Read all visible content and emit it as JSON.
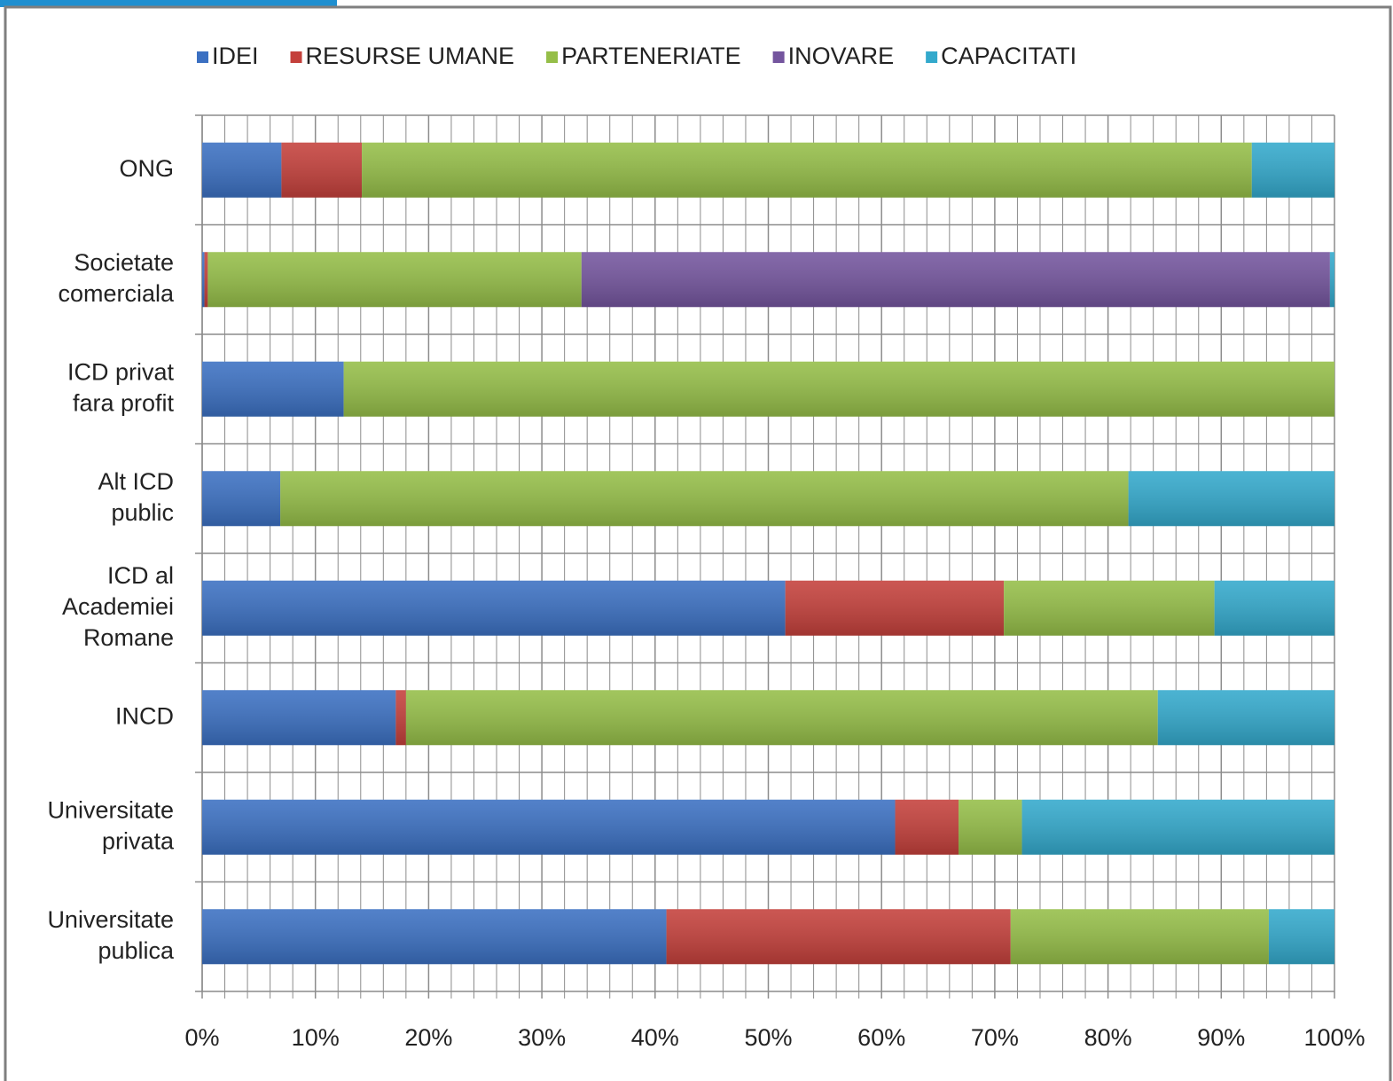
{
  "chart_data": {
    "type": "stacked_barh",
    "categories": [
      [
        "ONG"
      ],
      [
        "Societate",
        "comerciala"
      ],
      [
        "ICD privat",
        "fara profit"
      ],
      [
        "Alt ICD",
        "public"
      ],
      [
        "ICD al",
        "Academiei",
        "Romane"
      ],
      [
        "INCD"
      ],
      [
        "Universitate",
        "privata"
      ],
      [
        "Universitate",
        "publica"
      ]
    ],
    "series": [
      {
        "name": "IDEI",
        "color": "#3b70c2",
        "values": [
          7.0,
          0.2,
          12.5,
          6.9,
          51.5,
          17.1,
          61.2,
          41.0
        ]
      },
      {
        "name": "RESURSE UMANE",
        "color": "#c4403b",
        "values": [
          7.1,
          0.3,
          0,
          0,
          19.3,
          0.9,
          5.6,
          30.4
        ]
      },
      {
        "name": "PARTENERIATE",
        "color": "#95be48",
        "values": [
          78.6,
          33.0,
          87.5,
          74.9,
          18.6,
          66.4,
          5.6,
          22.8
        ]
      },
      {
        "name": "INOVARE",
        "color": "#74559e",
        "values": [
          0,
          66.1,
          0,
          0,
          0,
          0,
          0,
          0
        ]
      },
      {
        "name": "CAPACITATI",
        "color": "#33a9cc",
        "values": [
          7.3,
          0.4,
          0,
          18.2,
          10.6,
          15.6,
          27.6,
          5.8
        ]
      }
    ],
    "xlim": [
      0,
      100
    ],
    "xticks": [
      {
        "value": 0,
        "label": "0%"
      },
      {
        "value": 10,
        "label": "10%"
      },
      {
        "value": 20,
        "label": "20%"
      },
      {
        "value": 30,
        "label": "30%"
      },
      {
        "value": 40,
        "label": "40%"
      },
      {
        "value": 50,
        "label": "50%"
      },
      {
        "value": 60,
        "label": "60%"
      },
      {
        "value": 70,
        "label": "70%"
      },
      {
        "value": 80,
        "label": "80%"
      },
      {
        "value": 90,
        "label": "90%"
      },
      {
        "value": 100,
        "label": "100%"
      }
    ],
    "xminorticks": [
      2,
      4,
      6,
      8,
      12,
      14,
      16,
      18,
      22,
      24,
      26,
      28,
      32,
      34,
      36,
      38,
      42,
      44,
      46,
      48,
      52,
      54,
      56,
      58,
      62,
      64,
      66,
      68,
      72,
      74,
      76,
      78,
      82,
      84,
      86,
      88,
      92,
      94,
      96,
      98
    ],
    "grid": true,
    "legend": "top"
  }
}
